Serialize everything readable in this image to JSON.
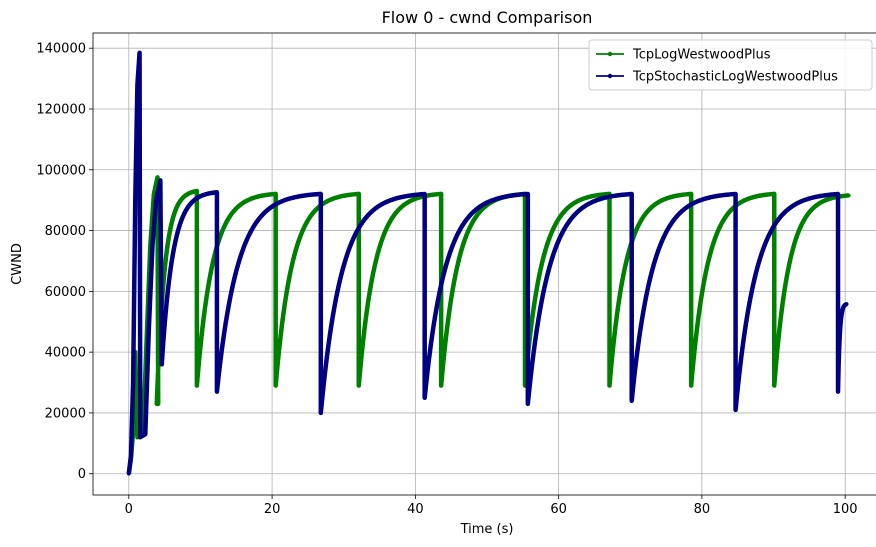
{
  "chart_data": {
    "type": "line",
    "title": "Flow 0 - cwnd Comparison",
    "xlabel": "Time (s)",
    "ylabel": "CWND",
    "xlim": [
      -5,
      105
    ],
    "ylim": [
      -7000,
      145000
    ],
    "xticks": [
      0,
      20,
      40,
      60,
      80,
      100
    ],
    "xtick_labels": [
      "0",
      "20",
      "40",
      "60",
      "80",
      "100"
    ],
    "yticks": [
      0,
      20000,
      40000,
      60000,
      80000,
      100000,
      120000,
      140000
    ],
    "ytick_labels": [
      "0",
      "20000",
      "40000",
      "60000",
      "80000",
      "100000",
      "120000",
      "140000"
    ],
    "grid": true,
    "legend_position": "top-right",
    "series": [
      {
        "name": "TcpLogWestwoodPlus",
        "color": "#008000",
        "marker": "dot",
        "segments": [
          {
            "t_start": 3.9,
            "t_end": 9.5,
            "low": 23000,
            "high": 93500
          },
          {
            "t_start": 9.5,
            "t_end": 20.5,
            "low": 29000,
            "high": 92500
          },
          {
            "t_start": 20.5,
            "t_end": 32.1,
            "low": 29000,
            "high": 92500
          },
          {
            "t_start": 32.1,
            "t_end": 43.6,
            "low": 29000,
            "high": 92500
          },
          {
            "t_start": 43.6,
            "t_end": 55.3,
            "low": 29000,
            "high": 92500
          },
          {
            "t_start": 55.3,
            "t_end": 67.1,
            "low": 29000,
            "high": 92500
          },
          {
            "t_start": 67.1,
            "t_end": 78.5,
            "low": 29000,
            "high": 92500
          },
          {
            "t_start": 78.5,
            "t_end": 90.1,
            "low": 29000,
            "high": 92500
          },
          {
            "t_start": 90.1,
            "t_end": 100.5,
            "low": 29000,
            "high": 92000
          }
        ],
        "slow_start": [
          [
            0,
            0
          ],
          [
            0.3,
            5000
          ],
          [
            0.6,
            14000
          ],
          [
            0.9,
            40000
          ],
          [
            1.2,
            12000
          ],
          [
            2.0,
            13000
          ],
          [
            2.5,
            45000
          ],
          [
            3.0,
            75000
          ],
          [
            3.5,
            92000
          ],
          [
            4.0,
            97500
          ],
          [
            4.1,
            23000
          ]
        ]
      },
      {
        "name": "TcpStochasticLogWestwoodPlus",
        "color": "#000080",
        "marker": "dot",
        "segments": [
          {
            "t_start": 4.6,
            "t_end": 12.3,
            "low": 36000,
            "high": 93000
          },
          {
            "t_start": 12.3,
            "t_end": 26.8,
            "low": 27000,
            "high": 92500
          },
          {
            "t_start": 26.8,
            "t_end": 41.3,
            "low": 20000,
            "high": 92500
          },
          {
            "t_start": 41.3,
            "t_end": 55.7,
            "low": 25000,
            "high": 92500
          },
          {
            "t_start": 55.7,
            "t_end": 70.2,
            "low": 23000,
            "high": 92500
          },
          {
            "t_start": 70.2,
            "t_end": 84.7,
            "low": 24000,
            "high": 92500
          },
          {
            "t_start": 84.7,
            "t_end": 99.0,
            "low": 21000,
            "high": 92500
          },
          {
            "t_start": 99.0,
            "t_end": 100.2,
            "low": 27000,
            "high": 56000
          }
        ],
        "slow_start": [
          [
            0,
            0
          ],
          [
            0.3,
            6000
          ],
          [
            0.6,
            30000
          ],
          [
            0.9,
            90000
          ],
          [
            1.2,
            128000
          ],
          [
            1.5,
            138500
          ],
          [
            1.6,
            12000
          ],
          [
            2.3,
            13000
          ],
          [
            2.8,
            48000
          ],
          [
            3.3,
            75000
          ],
          [
            3.8,
            90000
          ],
          [
            4.4,
            96500
          ],
          [
            4.6,
            36000
          ]
        ]
      }
    ]
  }
}
